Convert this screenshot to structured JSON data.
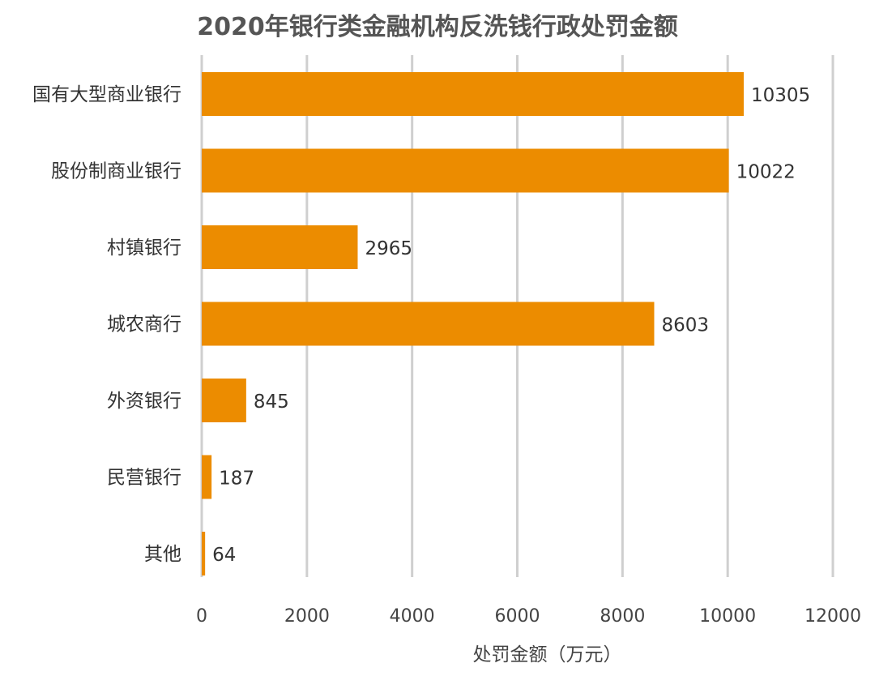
{
  "chart_data": {
    "type": "bar",
    "orientation": "horizontal",
    "title": "2020年银行类金融机构反洗钱行政处罚金额",
    "xlabel": "处罚金额（万元）",
    "ylabel": "",
    "categories": [
      "国有大型商业银行",
      "股份制商业银行",
      "村镇银行",
      "城农商行",
      "外资银行",
      "民营银行",
      "其他"
    ],
    "values": [
      10305,
      10022,
      2965,
      8603,
      845,
      187,
      64
    ],
    "data_labels": [
      "10305",
      "10022",
      "2965",
      "8603",
      "845",
      "187",
      "64"
    ],
    "xlim": [
      0,
      12000
    ],
    "x_ticks": [
      0,
      2000,
      4000,
      6000,
      8000,
      10000,
      12000
    ],
    "x_tick_labels": [
      "0",
      "2000",
      "4000",
      "6000",
      "8000",
      "10000",
      "12000"
    ],
    "grid": "vertical",
    "legend": "none",
    "bar_color": "#ec8c00"
  }
}
